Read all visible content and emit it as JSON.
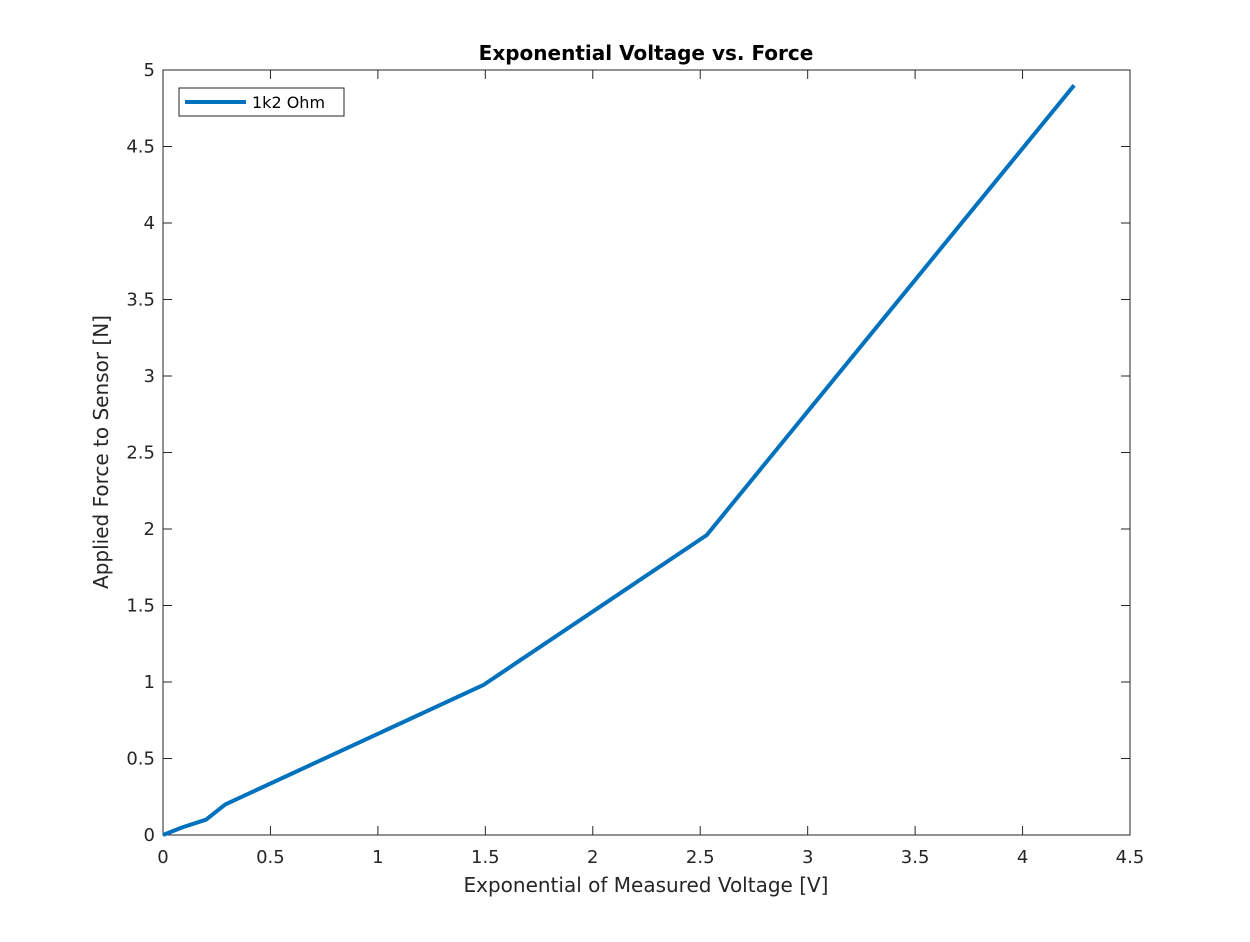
{
  "chart_data": {
    "type": "line",
    "title": "Exponential Voltage vs. Force",
    "xlabel": "Exponential of Measured Voltage [V]",
    "ylabel": "Applied Force to Sensor [N]",
    "xlim": [
      0,
      4.5
    ],
    "ylim": [
      0,
      5
    ],
    "xticks": [
      "0",
      "0.5",
      "1",
      "1.5",
      "2",
      "2.5",
      "3",
      "3.5",
      "4",
      "4.5"
    ],
    "yticks": [
      "0",
      "0.5",
      "1",
      "1.5",
      "2",
      "2.5",
      "3",
      "3.5",
      "4",
      "4.5",
      "5"
    ],
    "grid": false,
    "legend_position": "top-left",
    "series": [
      {
        "name": "1k2 Ohm",
        "color": "#0072BD",
        "x": [
          0,
          0.09,
          0.2,
          0.29,
          1.49,
          2.53,
          4.24
        ],
        "y": [
          0,
          0.05,
          0.1,
          0.2,
          0.98,
          1.96,
          4.9
        ]
      }
    ]
  }
}
